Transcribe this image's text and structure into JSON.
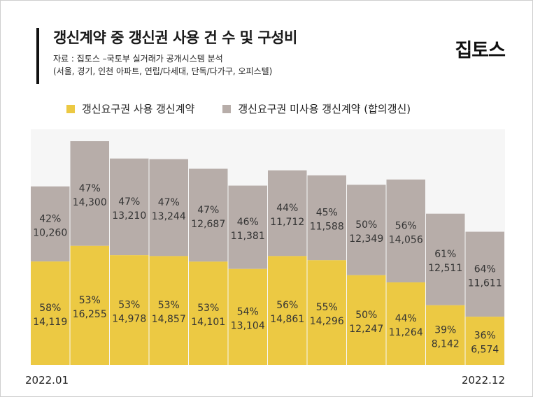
{
  "header": {
    "title": "갱신계약 중 갱신권 사용 건 수 및 구성비",
    "source_line1": "자료 : 집토스 –국토부 실거래가 공개시스템 분석",
    "source_line2": "(서울, 경기, 인천 아파트, 연립/다세대, 단독/다가구, 오피스텔)",
    "logo": "집토스"
  },
  "colors": {
    "used": "#ecc943",
    "unused": "#b7ada9",
    "background": "#ffffff"
  },
  "chart_data": {
    "type": "bar",
    "stacked": true,
    "axis_start_label": "2022.01",
    "axis_end_label": "2022.12",
    "series": [
      {
        "name": "갱신요구권 사용 갱신계약",
        "values": [
          14119,
          16255,
          14978,
          14857,
          14101,
          13104,
          14861,
          14296,
          12247,
          11264,
          8142,
          6574
        ],
        "percent_labels": [
          "58%",
          "53%",
          "53%",
          "53%",
          "53%",
          "54%",
          "56%",
          "55%",
          "50%",
          "44%",
          "39%",
          "36%"
        ],
        "value_labels": [
          "14,119",
          "16,255",
          "14,978",
          "14,857",
          "14,101",
          "13,104",
          "14,861",
          "14,296",
          "12,247",
          "11,264",
          "8,142",
          "6,574"
        ]
      },
      {
        "name": "갱신요구권 미사용 갱신계약 (합의갱신)",
        "values": [
          10260,
          14300,
          13210,
          13244,
          12687,
          11381,
          11712,
          11588,
          12349,
          14056,
          12511,
          11611
        ],
        "percent_labels": [
          "42%",
          "47%",
          "47%",
          "47%",
          "47%",
          "46%",
          "44%",
          "45%",
          "50%",
          "56%",
          "61%",
          "64%"
        ],
        "value_labels": [
          "10,260",
          "14,300",
          "13,210",
          "13,244",
          "12,687",
          "11,381",
          "11,712",
          "11,588",
          "12,349",
          "14,056",
          "12,511",
          "11,611"
        ]
      }
    ],
    "grid": false,
    "legend_position": "top"
  }
}
